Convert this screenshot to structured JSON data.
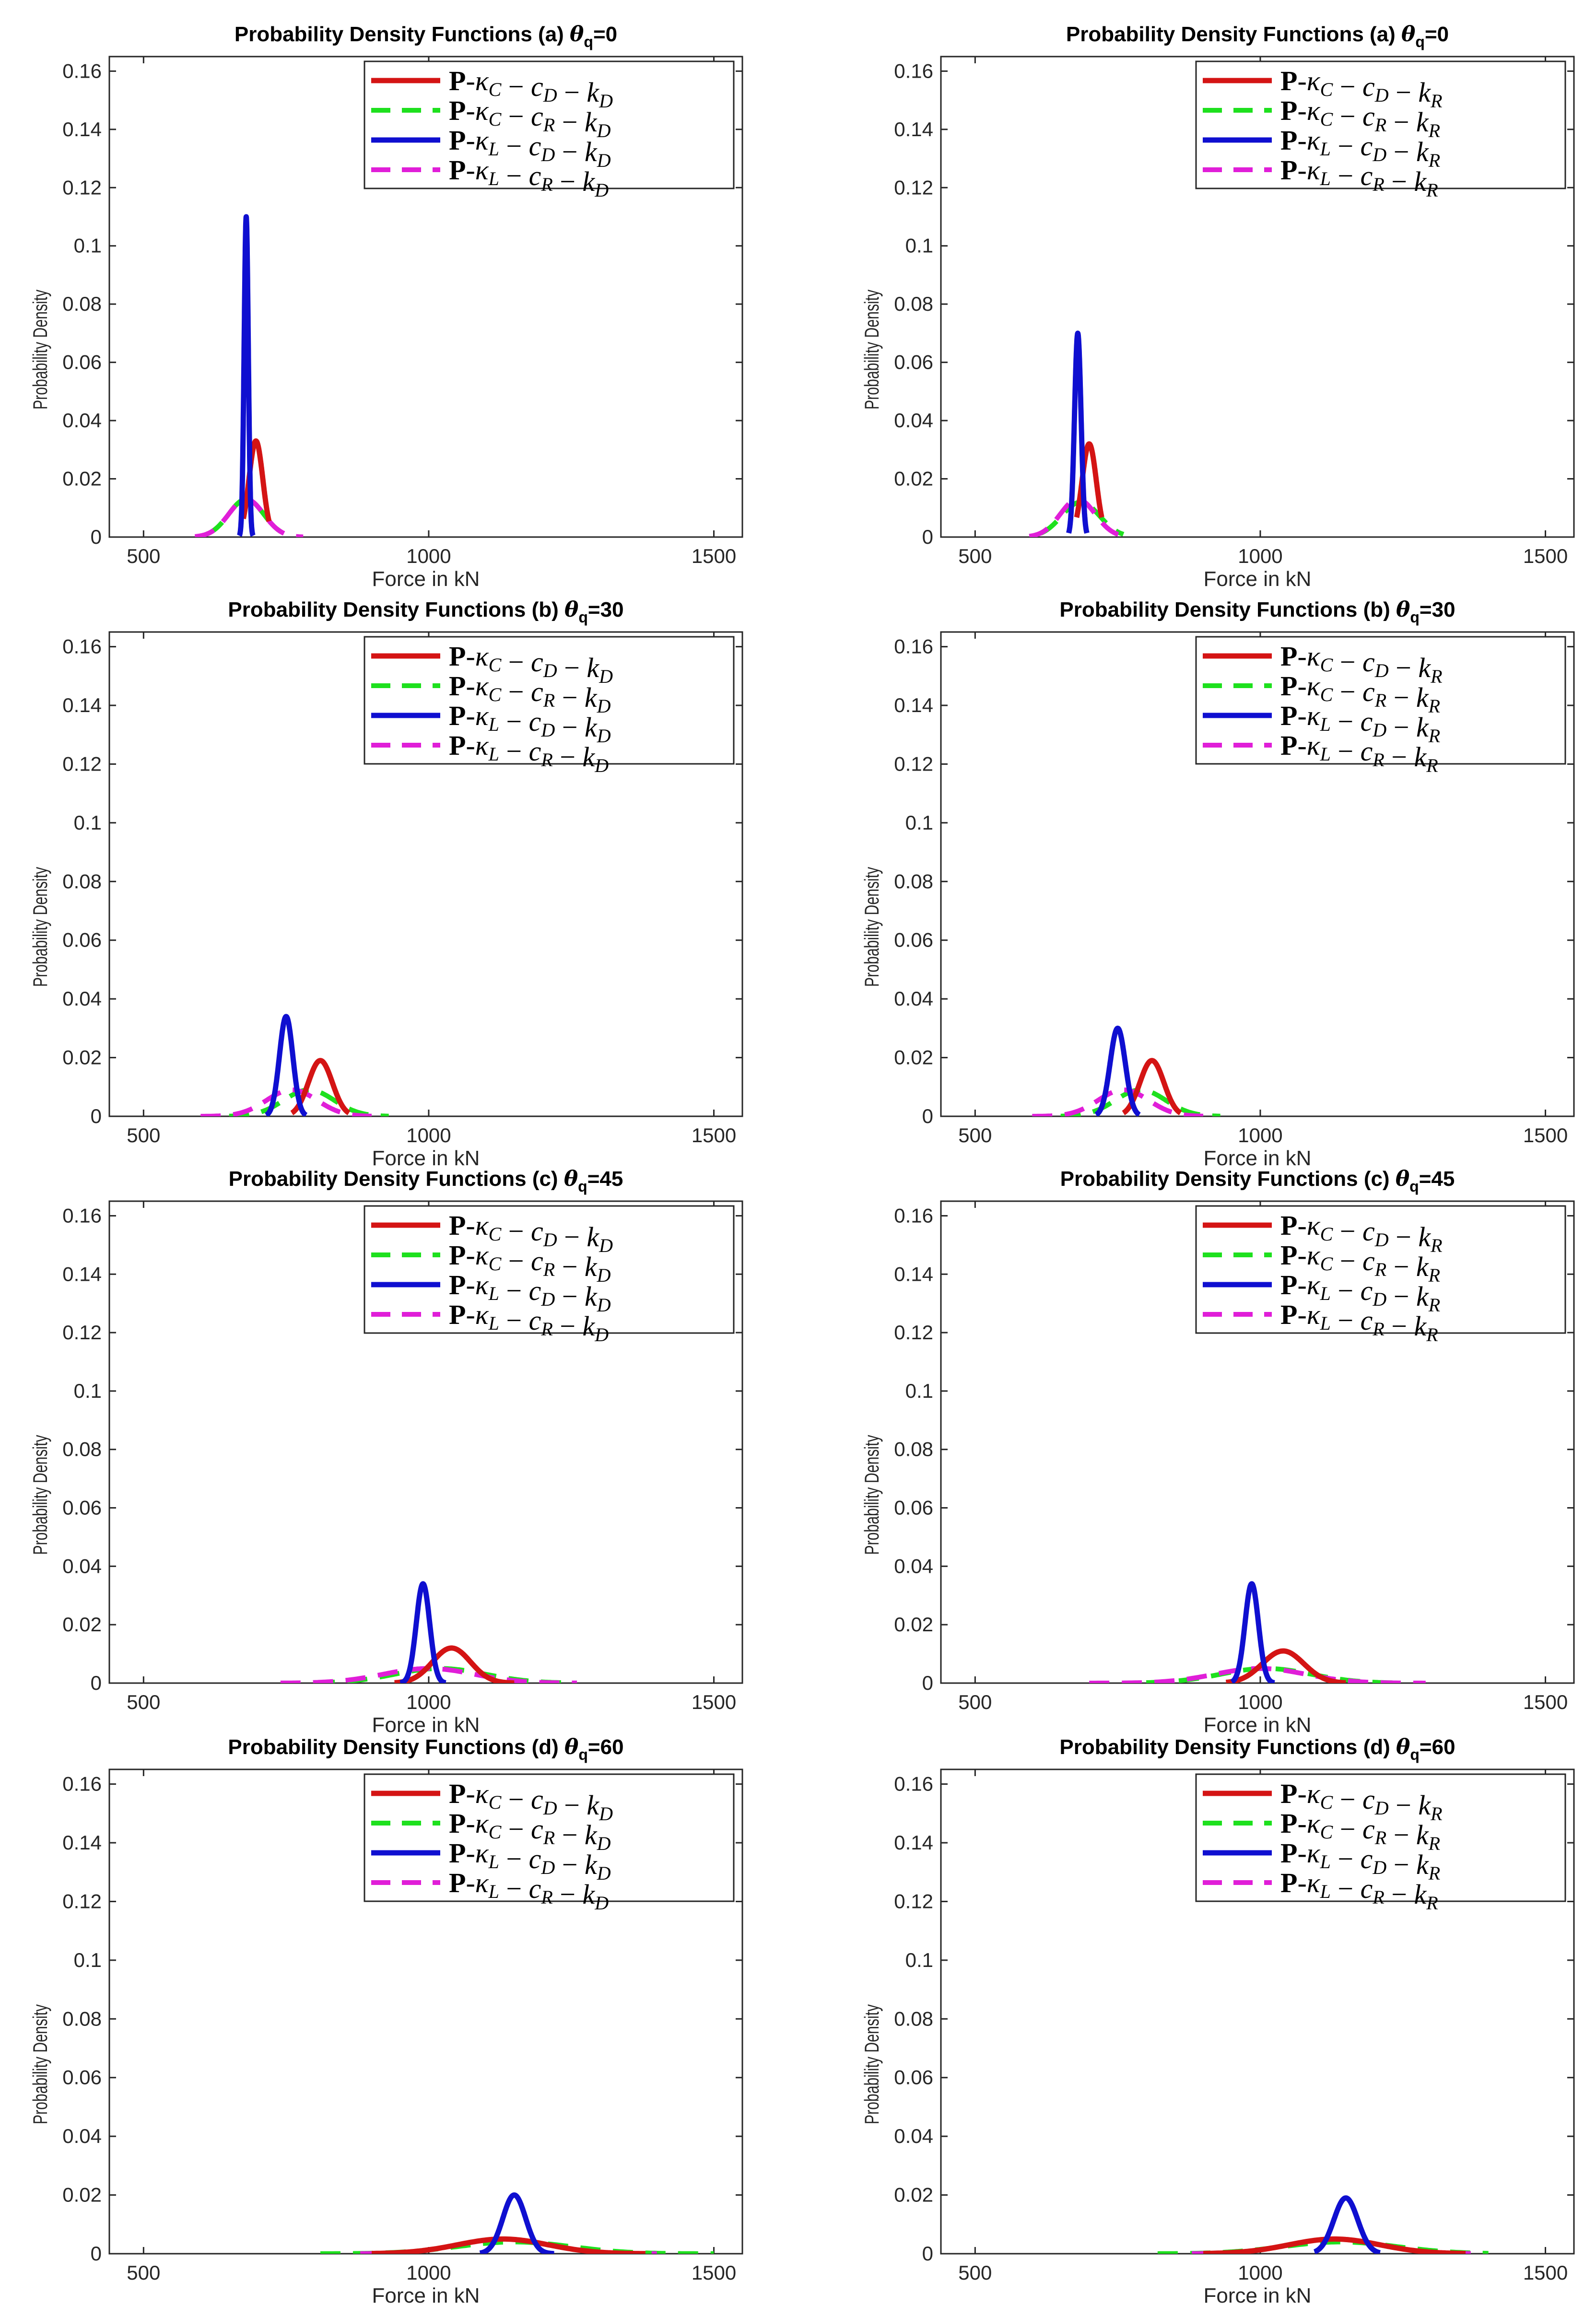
{
  "colors": {
    "red": "#d41414",
    "green": "#1ee01e",
    "blue": "#0f0fd0",
    "magenta": "#e01ed8",
    "axis": "#262626",
    "frame": "#262626"
  },
  "chart_data": [
    {
      "id": "a1",
      "type": "line",
      "title": "Probability Density Functions (a) θq=0",
      "title_prefix": "Probability Density Functions (a) ",
      "theta_sub": "q",
      "theta_value": "=0",
      "xlabel": "Force in kN",
      "ylabel": "Probability Density",
      "xlim": [
        440,
        1550
      ],
      "ylim": [
        0,
        0.165
      ],
      "xticks": [
        500,
        1000,
        1500
      ],
      "xtick_labels": [
        "500",
        "1000",
        "1500"
      ],
      "yticks": [
        0,
        0.02,
        0.04,
        0.06,
        0.08,
        0.1,
        0.12,
        0.14,
        0.16
      ],
      "ytick_labels": [
        "0",
        "0.02",
        "0.04",
        "0.06",
        "0.08",
        "0.1",
        "0.12",
        "0.14",
        "0.16"
      ],
      "legend": [
        "P-κC − cD − kD",
        "P-κC − cR − kD",
        "P-κL − cD − kD",
        "P-κL − cR − kD"
      ],
      "legend_location": "top-right",
      "series": [
        {
          "name": "P-κC − cD − kD",
          "mean": 697,
          "peak": 0.033,
          "x_range": [
            675,
            720
          ],
          "style": "solid",
          "color_key": "red"
        },
        {
          "name": "P-κC − cR − kD",
          "mean": 680,
          "peak": 0.013,
          "x_range": [
            610,
            740
          ],
          "style": "dashed",
          "color_key": "green"
        },
        {
          "name": "P-κL − cD − kD",
          "mean": 680,
          "peak": 0.11,
          "x_range": [
            668,
            692
          ],
          "style": "solid",
          "color_key": "blue"
        },
        {
          "name": "P-κL − cR − kD",
          "mean": 680,
          "peak": 0.013,
          "x_range": [
            590,
            780
          ],
          "style": "dashed",
          "color_key": "magenta"
        }
      ]
    },
    {
      "id": "a2",
      "type": "line",
      "title": "Probability Density Functions (a) θq=0",
      "title_prefix": "Probability Density Functions (a) ",
      "theta_sub": "q",
      "theta_value": "=0",
      "xlabel": "Force in kN",
      "ylabel": "Probability Density",
      "xlim": [
        440,
        1550
      ],
      "ylim": [
        0,
        0.165
      ],
      "xticks": [
        500,
        1000,
        1500
      ],
      "xtick_labels": [
        "500",
        "1000",
        "1500"
      ],
      "yticks": [
        0,
        0.02,
        0.04,
        0.06,
        0.08,
        0.1,
        0.12,
        0.14,
        0.16
      ],
      "ytick_labels": [
        "0",
        "0.02",
        "0.04",
        "0.06",
        "0.08",
        "0.1",
        "0.12",
        "0.14",
        "0.16"
      ],
      "legend": [
        "P-κC − cD − kR",
        "P-κC − cR − kR",
        "P-κL − cD − kR",
        "P-κL − cR − kR"
      ],
      "legend_location": "top-right",
      "series": [
        {
          "name": "P-κC − cD − kR",
          "mean": 700,
          "peak": 0.032,
          "x_range": [
            678,
            722
          ],
          "style": "solid",
          "color_key": "red"
        },
        {
          "name": "P-κC − cR − kR",
          "mean": 685,
          "peak": 0.012,
          "x_range": [
            615,
            760
          ],
          "style": "dashed",
          "color_key": "green"
        },
        {
          "name": "P-κL − cD − kR",
          "mean": 680,
          "peak": 0.07,
          "x_range": [
            664,
            696
          ],
          "style": "solid",
          "color_key": "blue"
        },
        {
          "name": "P-κL − cR − kR",
          "mean": 680,
          "peak": 0.013,
          "x_range": [
            595,
            770
          ],
          "style": "dashed",
          "color_key": "magenta"
        }
      ]
    },
    {
      "id": "b1",
      "type": "line",
      "title": "Probability Density Functions (b) θq=30",
      "title_prefix": "Probability Density Functions (b) ",
      "theta_sub": "q",
      "theta_value": "=30",
      "xlabel": "Force in  kN",
      "ylabel": "Probability Density",
      "xlim": [
        440,
        1550
      ],
      "ylim": [
        0,
        0.165
      ],
      "xticks": [
        500,
        1000,
        1500
      ],
      "xtick_labels": [
        "500",
        "1000",
        "1500"
      ],
      "yticks": [
        0,
        0.02,
        0.04,
        0.06,
        0.08,
        0.1,
        0.12,
        0.14,
        0.16
      ],
      "ytick_labels": [
        "0",
        "0.02",
        "0.04",
        "0.06",
        "0.08",
        "0.1",
        "0.12",
        "0.14",
        "0.16"
      ],
      "legend": [
        "P-κC − cD − kD",
        "P-κC − cR − kD",
        "P-κL − cD − kD",
        "P-κL − cR − kD"
      ],
      "legend_location": "top-right",
      "series": [
        {
          "name": "P-κC − cD − kD",
          "mean": 810,
          "peak": 0.019,
          "x_range": [
            760,
            860
          ],
          "style": "solid",
          "color_key": "red"
        },
        {
          "name": "P-κC − cR − kD",
          "mean": 790,
          "peak": 0.009,
          "x_range": [
            650,
            930
          ],
          "style": "dashed",
          "color_key": "green"
        },
        {
          "name": "P-κL − cD − kD",
          "mean": 750,
          "peak": 0.034,
          "x_range": [
            715,
            785
          ],
          "style": "solid",
          "color_key": "blue"
        },
        {
          "name": "P-κL − cR − kD",
          "mean": 760,
          "peak": 0.009,
          "x_range": [
            600,
            900
          ],
          "style": "dashed",
          "color_key": "magenta"
        }
      ]
    },
    {
      "id": "b2",
      "type": "line",
      "title": "Probability Density Functions (b) θq=30",
      "title_prefix": "Probability Density Functions (b) ",
      "theta_sub": "q",
      "theta_value": "=30",
      "xlabel": "Force in  kN",
      "ylabel": "Probability Density",
      "xlim": [
        440,
        1550
      ],
      "ylim": [
        0,
        0.165
      ],
      "xticks": [
        500,
        1000,
        1500
      ],
      "xtick_labels": [
        "500",
        "1000",
        "1500"
      ],
      "yticks": [
        0,
        0.02,
        0.04,
        0.06,
        0.08,
        0.1,
        0.12,
        0.14,
        0.16
      ],
      "ytick_labels": [
        "0",
        "0.02",
        "0.04",
        "0.06",
        "0.08",
        "0.1",
        "0.12",
        "0.14",
        "0.16"
      ],
      "legend": [
        "P-κC − cD − kR",
        "P-κC − cR − kR",
        "P-κL − cD − kR",
        "P-κL − cR − kR"
      ],
      "legend_location": "top-right",
      "series": [
        {
          "name": "P-κC − cD − kR",
          "mean": 810,
          "peak": 0.019,
          "x_range": [
            760,
            860
          ],
          "style": "solid",
          "color_key": "red"
        },
        {
          "name": "P-κC − cR − kR",
          "mean": 790,
          "peak": 0.009,
          "x_range": [
            650,
            930
          ],
          "style": "dashed",
          "color_key": "green"
        },
        {
          "name": "P-κL − cD − kR",
          "mean": 750,
          "peak": 0.03,
          "x_range": [
            712,
            788
          ],
          "style": "solid",
          "color_key": "blue"
        },
        {
          "name": "P-κL − cR − kR",
          "mean": 760,
          "peak": 0.009,
          "x_range": [
            600,
            900
          ],
          "style": "dashed",
          "color_key": "magenta"
        }
      ]
    },
    {
      "id": "c1",
      "type": "line",
      "title": "Probability Density Functions (c) θq=45",
      "title_prefix": "Probability Density Functions (c) ",
      "theta_sub": "q",
      "theta_value": "=45",
      "xlabel": "Force in kN",
      "ylabel": "Probability Density",
      "xlim": [
        440,
        1550
      ],
      "ylim": [
        0,
        0.165
      ],
      "xticks": [
        500,
        1000,
        1500
      ],
      "xtick_labels": [
        "500",
        "1000",
        "1500"
      ],
      "yticks": [
        0,
        0.02,
        0.04,
        0.06,
        0.08,
        0.1,
        0.12,
        0.14,
        0.16
      ],
      "ytick_labels": [
        "0",
        "0.02",
        "0.04",
        "0.06",
        "0.08",
        "0.1",
        "0.12",
        "0.14",
        "0.16"
      ],
      "legend": [
        "P-κC − cD − kD",
        "P-κC − cR − kD",
        "P-κL − cD − kD",
        "P-κL − cR − kD"
      ],
      "legend_location": "top-right",
      "series": [
        {
          "name": "P-κC − cD − kD",
          "mean": 1040,
          "peak": 0.012,
          "x_range": [
            940,
            1150
          ],
          "style": "solid",
          "color_key": "red"
        },
        {
          "name": "P-κC − cR − kD",
          "mean": 1020,
          "peak": 0.005,
          "x_range": [
            800,
            1240
          ],
          "style": "dashed",
          "color_key": "green"
        },
        {
          "name": "P-κL − cD − kD",
          "mean": 990,
          "peak": 0.034,
          "x_range": [
            950,
            1030
          ],
          "style": "solid",
          "color_key": "blue"
        },
        {
          "name": "P-κL − cR − kD",
          "mean": 1000,
          "peak": 0.005,
          "x_range": [
            740,
            1260
          ],
          "style": "dashed",
          "color_key": "magenta"
        }
      ]
    },
    {
      "id": "c2",
      "type": "line",
      "title": "Probability Density Functions (c) θq=45",
      "title_prefix": "Probability Density Functions (c) ",
      "theta_sub": "q",
      "theta_value": "=45",
      "xlabel": "Force in kN",
      "ylabel": "Probability Density",
      "xlim": [
        440,
        1550
      ],
      "ylim": [
        0,
        0.165
      ],
      "xticks": [
        500,
        1000,
        1500
      ],
      "xtick_labels": [
        "500",
        "1000",
        "1500"
      ],
      "yticks": [
        0,
        0.02,
        0.04,
        0.06,
        0.08,
        0.1,
        0.12,
        0.14,
        0.16
      ],
      "ytick_labels": [
        "0",
        "0.02",
        "0.04",
        "0.06",
        "0.08",
        "0.1",
        "0.12",
        "0.14",
        "0.16"
      ],
      "legend": [
        "P-κC − cD − kR",
        "P-κC − cR − kR",
        "P-κL − cD − kR",
        "P-κL − cR − kR"
      ],
      "legend_location": "top-right",
      "series": [
        {
          "name": "P-κC − cD − kR",
          "mean": 1040,
          "peak": 0.011,
          "x_range": [
            940,
            1150
          ],
          "style": "solid",
          "color_key": "red"
        },
        {
          "name": "P-κC − cR − kR",
          "mean": 1010,
          "peak": 0.005,
          "x_range": [
            800,
            1240
          ],
          "style": "dashed",
          "color_key": "green"
        },
        {
          "name": "P-κL − cD − kR",
          "mean": 985,
          "peak": 0.034,
          "x_range": [
            950,
            1025
          ],
          "style": "solid",
          "color_key": "blue"
        },
        {
          "name": "P-κL − cR − kR",
          "mean": 1000,
          "peak": 0.005,
          "x_range": [
            700,
            1290
          ],
          "style": "dashed",
          "color_key": "magenta"
        }
      ]
    },
    {
      "id": "d1",
      "type": "line",
      "title": "Probability Density Functions (d) θq=60",
      "title_prefix": "Probability Density Functions (d) ",
      "theta_sub": "q",
      "theta_value": "=60",
      "xlabel": "Force in kN",
      "ylabel": "Probability Density",
      "xlim": [
        440,
        1550
      ],
      "ylim": [
        0,
        0.165
      ],
      "xticks": [
        500,
        1000,
        1500
      ],
      "xtick_labels": [
        "500",
        "1000",
        "1500"
      ],
      "yticks": [
        0,
        0.02,
        0.04,
        0.06,
        0.08,
        0.1,
        0.12,
        0.14,
        0.16
      ],
      "ytick_labels": [
        "0",
        "0.02",
        "0.04",
        "0.06",
        "0.08",
        "0.1",
        "0.12",
        "0.14",
        "0.16"
      ],
      "legend": [
        "P-κC − cD − kD",
        "P-κC − cR − kD",
        "P-κL − cD − kD",
        "P-κL − cR − kD"
      ],
      "legend_location": "top-right",
      "series": [
        {
          "name": "P-κC − cD − kD",
          "mean": 1130,
          "peak": 0.005,
          "x_range": [
            900,
            1380
          ],
          "style": "solid",
          "color_key": "red"
        },
        {
          "name": "P-κC − cR − kD",
          "mean": 1150,
          "peak": 0.004,
          "x_range": [
            810,
            1500
          ],
          "style": "dashed",
          "color_key": "green"
        },
        {
          "name": "P-κL − cD − kD",
          "mean": 1150,
          "peak": 0.02,
          "x_range": [
            1090,
            1220
          ],
          "style": "solid",
          "color_key": "blue"
        },
        {
          "name": "P-κL − cR − kD",
          "mean": 1130,
          "peak": 0.005,
          "x_range": [
            880,
            1400
          ],
          "style": "dashed",
          "color_key": "magenta"
        }
      ]
    },
    {
      "id": "d2",
      "type": "line",
      "title": "Probability Density Functions (d) θq=60",
      "title_prefix": "Probability Density Functions (d) ",
      "theta_sub": "q",
      "theta_value": "=60",
      "xlabel": "Force in kN",
      "ylabel": "Probability Density",
      "xlim": [
        440,
        1550
      ],
      "ylim": [
        0,
        0.165
      ],
      "xticks": [
        500,
        1000,
        1500
      ],
      "xtick_labels": [
        "500",
        "1000",
        "1500"
      ],
      "yticks": [
        0,
        0.02,
        0.04,
        0.06,
        0.08,
        0.1,
        0.12,
        0.14,
        0.16
      ],
      "ytick_labels": [
        "0",
        "0.02",
        "0.04",
        "0.06",
        "0.08",
        "0.1",
        "0.12",
        "0.14",
        "0.16"
      ],
      "legend": [
        "P-κC − cD − kR",
        "P-κC − cR − kR",
        "P-κL − cD − kR",
        "P-κL − cR − kR"
      ],
      "legend_location": "top-right",
      "series": [
        {
          "name": "P-κC − cD − kR",
          "mean": 1130,
          "peak": 0.005,
          "x_range": [
            900,
            1360
          ],
          "style": "solid",
          "color_key": "red"
        },
        {
          "name": "P-κC − cR − kR",
          "mean": 1140,
          "peak": 0.004,
          "x_range": [
            820,
            1400
          ],
          "style": "dashed",
          "color_key": "green"
        },
        {
          "name": "P-κL − cD − kR",
          "mean": 1150,
          "peak": 0.019,
          "x_range": [
            1095,
            1210
          ],
          "style": "solid",
          "color_key": "blue"
        },
        {
          "name": "P-κL − cR − kR",
          "mean": 1130,
          "peak": 0.005,
          "x_range": [
            880,
            1380
          ],
          "style": "dashed",
          "color_key": "magenta"
        }
      ]
    }
  ]
}
